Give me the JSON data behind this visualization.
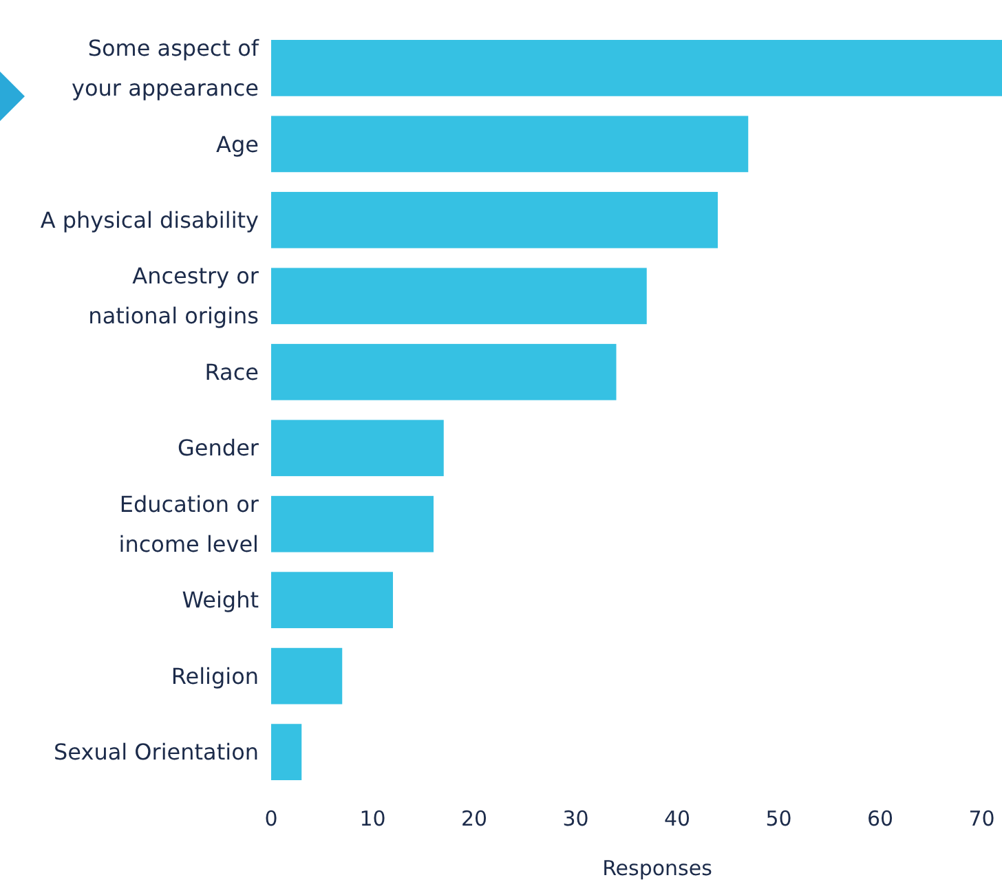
{
  "chart_data": {
    "type": "bar",
    "orientation": "horizontal",
    "xlabel": "Responses",
    "categories": [
      "Some aspect of\nyour appearance",
      "Age",
      "A physical disability",
      "Ancestry or\nnational origins",
      "Race",
      "Gender",
      "Education or\nincome level",
      "Weight",
      "Religion",
      "Sexual Orientation"
    ],
    "values": [
      72,
      47,
      44,
      37,
      34,
      17,
      16,
      12,
      7,
      3
    ],
    "color": "#36c1e3",
    "xlim": [
      0,
      72
    ],
    "xticks": [
      0,
      10,
      20,
      30,
      40,
      50,
      60,
      70
    ],
    "grid": false
  }
}
